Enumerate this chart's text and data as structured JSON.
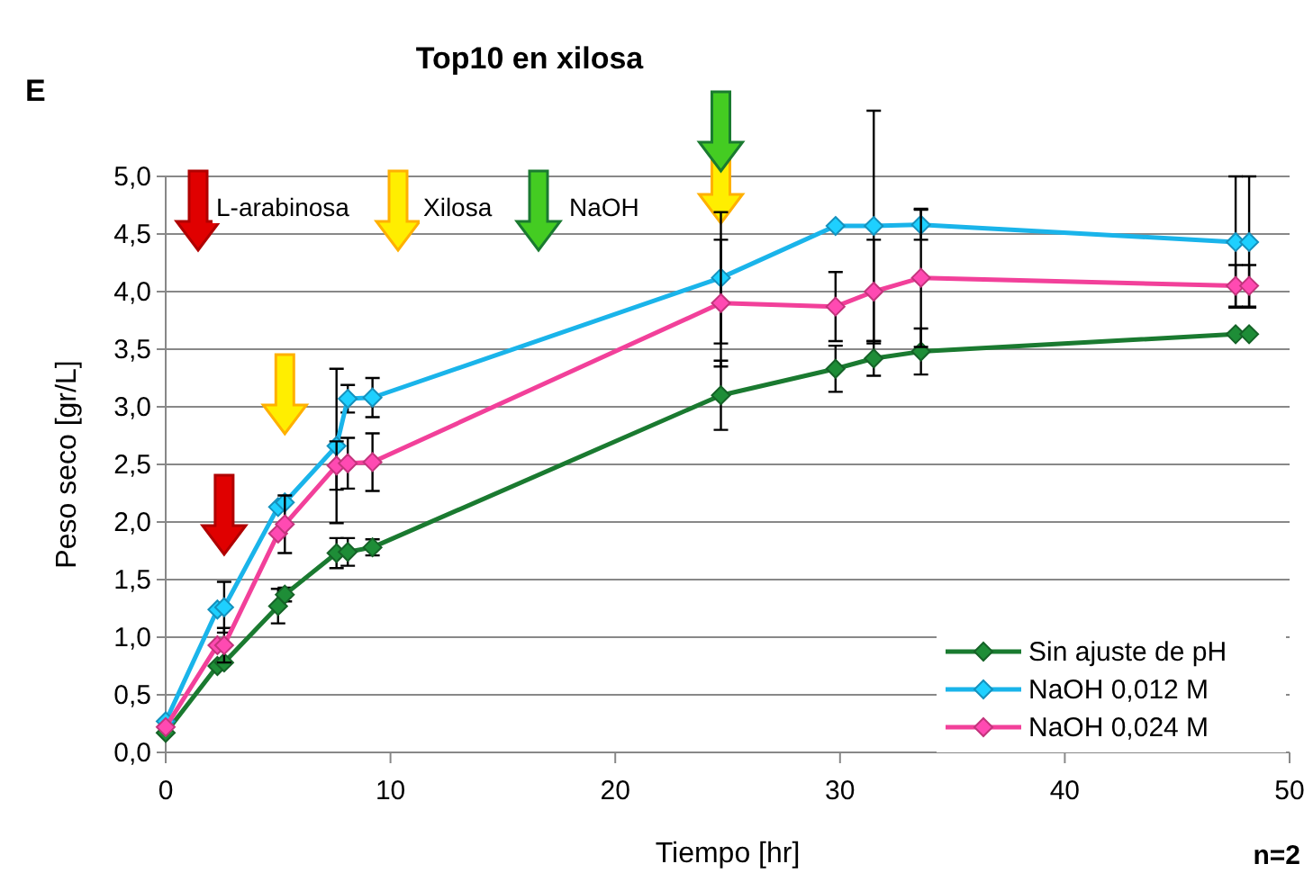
{
  "chart_data": {
    "type": "line",
    "title": "Top10 en xilosa",
    "xlabel": "Tiempo [hr]",
    "ylabel": "Peso seco [gr/L]",
    "annotations": [
      "E",
      "L-arabinosa",
      "Xilosa",
      "NaOH",
      "n=2"
    ],
    "x": [
      0,
      2.3,
      2.6,
      5.0,
      5.3,
      7.6,
      8.1,
      9.2,
      24.7,
      29.8,
      31.5,
      33.6,
      47.6,
      48.2
    ],
    "series": [
      {
        "name": "Sin ajuste de pH",
        "color": "#1a7a30",
        "values": [
          0.17,
          0.75,
          0.78,
          1.27,
          1.37,
          1.73,
          1.74,
          1.78,
          3.1,
          3.33,
          3.42,
          3.48,
          3.63,
          3.63
        ],
        "errors": [
          null,
          null,
          null,
          0.15,
          0.06,
          0.13,
          0.12,
          0.07,
          0.3,
          0.2,
          0.15,
          0.2,
          null,
          null
        ]
      },
      {
        "name": "NaOH 0,012 M",
        "color": "#1ab4ea",
        "values": [
          0.27,
          1.24,
          1.26,
          2.13,
          2.17,
          2.66,
          3.07,
          3.08,
          4.12,
          4.57,
          4.57,
          4.58,
          4.43,
          4.43
        ],
        "errors": [
          null,
          null,
          0.22,
          null,
          null,
          0.67,
          0.12,
          0.17,
          0.57,
          null,
          1.0,
          0.13,
          0.57,
          0.57
        ]
      },
      {
        "name": "NaOH 0,024 M",
        "color": "#f2409a",
        "values": [
          0.22,
          0.93,
          0.93,
          1.9,
          1.98,
          2.49,
          2.51,
          2.52,
          3.9,
          3.87,
          4.0,
          4.12,
          4.05,
          4.05
        ],
        "errors": [
          null,
          null,
          0.15,
          null,
          0.25,
          0.21,
          0.22,
          0.25,
          0.55,
          0.3,
          0.45,
          0.6,
          0.18,
          0.18
        ]
      }
    ],
    "xlim": [
      0,
      50
    ],
    "xticks": [
      0,
      10,
      20,
      30,
      40,
      50
    ],
    "ylim": [
      0,
      5
    ],
    "yticks": [
      {
        "value": 0,
        "label": "0,0"
      },
      {
        "value": 0.5,
        "label": "0,5"
      },
      {
        "value": 1,
        "label": "1,0"
      },
      {
        "value": 1.5,
        "label": "1,5"
      },
      {
        "value": 2,
        "label": "2,0"
      },
      {
        "value": 2.5,
        "label": "2,5"
      },
      {
        "value": 3,
        "label": "3,0"
      },
      {
        "value": 3.5,
        "label": "3,5"
      },
      {
        "value": 4,
        "label": "4,0"
      },
      {
        "value": 4.5,
        "label": "4,5"
      },
      {
        "value": 5,
        "label": "5,0"
      }
    ],
    "grid": "y",
    "legend": "bottom right",
    "marker": "diamond",
    "line_style": "solid"
  }
}
